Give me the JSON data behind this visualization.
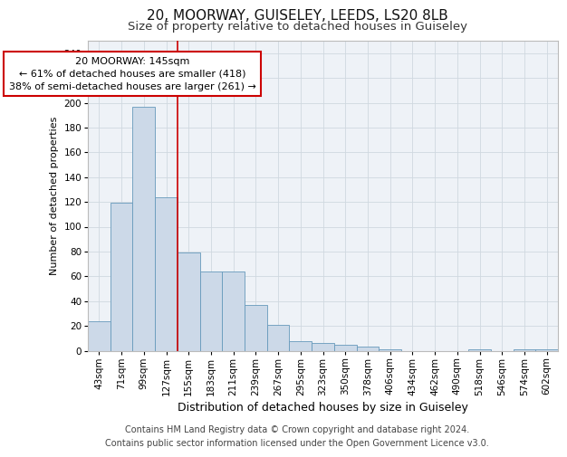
{
  "title1": "20, MOORWAY, GUISELEY, LEEDS, LS20 8LB",
  "title2": "Size of property relative to detached houses in Guiseley",
  "xlabel": "Distribution of detached houses by size in Guiseley",
  "ylabel": "Number of detached properties",
  "categories": [
    "43sqm",
    "71sqm",
    "99sqm",
    "127sqm",
    "155sqm",
    "183sqm",
    "211sqm",
    "239sqm",
    "267sqm",
    "295sqm",
    "323sqm",
    "350sqm",
    "378sqm",
    "406sqm",
    "434sqm",
    "462sqm",
    "490sqm",
    "518sqm",
    "546sqm",
    "574sqm",
    "602sqm"
  ],
  "values": [
    24,
    119,
    197,
    124,
    79,
    64,
    64,
    37,
    21,
    8,
    6,
    5,
    3,
    1,
    0,
    0,
    0,
    1,
    0,
    1,
    1
  ],
  "bar_color": "#ccd9e8",
  "bar_edge_color": "#6699bb",
  "grid_color": "#d0d8e0",
  "annotation_text": "20 MOORWAY: 145sqm\n← 61% of detached houses are smaller (418)\n38% of semi-detached houses are larger (261) →",
  "annotation_box_color": "#ffffff",
  "annotation_box_edge_color": "#cc0000",
  "vline_color": "#cc0000",
  "vline_x": 3.5,
  "footer_text": "Contains HM Land Registry data © Crown copyright and database right 2024.\nContains public sector information licensed under the Open Government Licence v3.0.",
  "ylim": [
    0,
    250
  ],
  "yticks": [
    0,
    20,
    40,
    60,
    80,
    100,
    120,
    140,
    160,
    180,
    200,
    220,
    240
  ],
  "title1_fontsize": 11,
  "title2_fontsize": 9.5,
  "xlabel_fontsize": 9,
  "ylabel_fontsize": 8,
  "tick_fontsize": 7.5,
  "footer_fontsize": 7,
  "annotation_fontsize": 8
}
